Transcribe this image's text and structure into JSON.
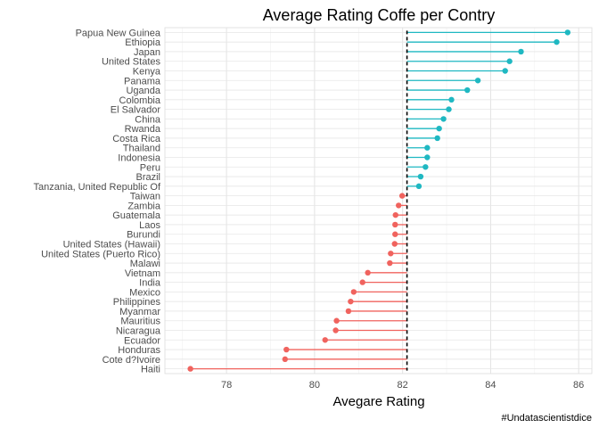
{
  "chart_data": {
    "type": "lollipop",
    "title": "Average Rating Coffe per Contry",
    "xlabel": "Avegare Rating",
    "caption": "#Undatascientistdice",
    "xlim": [
      76.6,
      86.3
    ],
    "xticks": [
      78,
      80,
      82,
      84,
      86
    ],
    "baseline": 82.1,
    "grid": true,
    "legend": "none",
    "colors": {
      "above": "#1fb8c2",
      "below": "#f0635e",
      "baseline": "#000000"
    },
    "categories": [
      "Papua New Guinea",
      "Ethiopia",
      "Japan",
      "United States",
      "Kenya",
      "Panama",
      "Uganda",
      "Colombia",
      "El Salvador",
      "China",
      "Rwanda",
      "Costa Rica",
      "Thailand",
      "Indonesia",
      "Peru",
      "Brazil",
      "Tanzania, United Republic Of",
      "Taiwan",
      "Zambia",
      "Guatemala",
      "Laos",
      "Burundi",
      "United States (Hawaii)",
      "United States (Puerto Rico)",
      "Malawi",
      "Vietnam",
      "India",
      "Mexico",
      "Philippines",
      "Myanmar",
      "Mauritius",
      "Nicaragua",
      "Ecuador",
      "Honduras",
      "Cote d?Ivoire",
      "Haiti"
    ],
    "values": [
      85.75,
      85.5,
      84.69,
      84.43,
      84.33,
      83.71,
      83.47,
      83.11,
      83.05,
      82.93,
      82.83,
      82.79,
      82.56,
      82.56,
      82.52,
      82.41,
      82.37,
      81.99,
      81.91,
      81.84,
      81.83,
      81.83,
      81.82,
      81.73,
      81.71,
      81.21,
      81.09,
      80.89,
      80.82,
      80.77,
      80.5,
      80.48,
      80.24,
      79.36,
      79.33,
      77.18
    ]
  }
}
